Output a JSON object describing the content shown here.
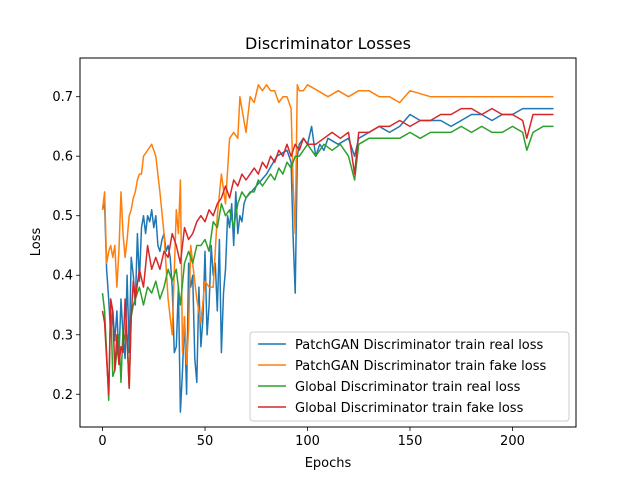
{
  "chart_data": {
    "type": "line",
    "title": "Discriminator Losses",
    "xlabel": "Epochs",
    "ylabel": "Loss",
    "xlim": [
      -11,
      231
    ],
    "ylim": [
      0.145,
      0.765
    ],
    "xticks": [
      0,
      50,
      100,
      150,
      200
    ],
    "yticks": [
      0.2,
      0.3,
      0.4,
      0.5,
      0.6,
      0.7
    ],
    "xtick_labels": [
      "0",
      "50",
      "100",
      "150",
      "200"
    ],
    "ytick_labels": [
      "0.2",
      "0.3",
      "0.4",
      "0.5",
      "0.6",
      "0.7"
    ],
    "grid": false,
    "legend_position": "lower-right",
    "series": [
      {
        "name": "PatchGAN Discriminator train real loss",
        "color": "#1f77b4",
        "x": [
          0,
          1,
          2,
          3,
          4,
          5,
          6,
          7,
          8,
          9,
          10,
          11,
          12,
          13,
          14,
          15,
          16,
          17,
          18,
          19,
          20,
          21,
          22,
          23,
          24,
          25,
          26,
          27,
          28,
          29,
          30,
          31,
          32,
          33,
          34,
          35,
          36,
          37,
          38,
          39,
          40,
          41,
          42,
          43,
          44,
          45,
          46,
          47,
          48,
          49,
          50,
          51,
          52,
          53,
          54,
          55,
          56,
          57,
          58,
          59,
          60,
          61,
          62,
          63,
          64,
          65,
          66,
          67,
          68,
          69,
          70,
          75,
          80,
          85,
          90,
          92,
          93,
          94,
          95,
          96,
          98,
          100,
          102,
          104,
          106,
          108,
          110,
          115,
          120,
          123,
          125,
          130,
          135,
          140,
          145,
          150,
          155,
          160,
          165,
          170,
          175,
          180,
          185,
          190,
          195,
          200,
          205,
          210,
          215,
          220
        ],
        "y": [
          0.51,
          0.52,
          0.41,
          0.36,
          0.3,
          0.34,
          0.29,
          0.34,
          0.26,
          0.36,
          0.3,
          0.26,
          0.4,
          0.27,
          0.43,
          0.4,
          0.35,
          0.47,
          0.39,
          0.48,
          0.5,
          0.47,
          0.5,
          0.49,
          0.51,
          0.48,
          0.5,
          0.45,
          0.44,
          0.46,
          0.47,
          0.44,
          0.45,
          0.43,
          0.38,
          0.27,
          0.28,
          0.38,
          0.17,
          0.24,
          0.33,
          0.2,
          0.42,
          0.38,
          0.4,
          0.26,
          0.22,
          0.38,
          0.28,
          0.33,
          0.44,
          0.3,
          0.35,
          0.45,
          0.4,
          0.42,
          0.34,
          0.46,
          0.27,
          0.37,
          0.41,
          0.5,
          0.48,
          0.52,
          0.45,
          0.54,
          0.47,
          0.5,
          0.49,
          0.52,
          0.53,
          0.55,
          0.57,
          0.6,
          0.61,
          0.59,
          0.46,
          0.37,
          0.6,
          0.62,
          0.63,
          0.62,
          0.65,
          0.6,
          0.62,
          0.61,
          0.63,
          0.62,
          0.63,
          0.6,
          0.63,
          0.64,
          0.65,
          0.64,
          0.65,
          0.67,
          0.66,
          0.66,
          0.66,
          0.65,
          0.66,
          0.67,
          0.67,
          0.66,
          0.67,
          0.67,
          0.68,
          0.68,
          0.68,
          0.68
        ]
      },
      {
        "name": "PatchGAN Discriminator train fake loss",
        "color": "#ff7f0e",
        "x": [
          0,
          1,
          2,
          3,
          4,
          5,
          6,
          7,
          8,
          9,
          10,
          11,
          12,
          13,
          14,
          15,
          16,
          17,
          18,
          19,
          20,
          22,
          24,
          26,
          28,
          30,
          32,
          34,
          36,
          37,
          38,
          39,
          40,
          41,
          42,
          43,
          44,
          46,
          48,
          50,
          52,
          54,
          56,
          58,
          60,
          62,
          64,
          66,
          67,
          68,
          70,
          72,
          74,
          76,
          78,
          80,
          82,
          84,
          86,
          88,
          90,
          92,
          93,
          94,
          95,
          96,
          98,
          100,
          105,
          110,
          115,
          120,
          125,
          130,
          135,
          140,
          145,
          150,
          160,
          170,
          180,
          190,
          200,
          210,
          220
        ],
        "y": [
          0.51,
          0.54,
          0.42,
          0.44,
          0.45,
          0.43,
          0.45,
          0.38,
          0.44,
          0.54,
          0.47,
          0.43,
          0.46,
          0.5,
          0.51,
          0.53,
          0.54,
          0.56,
          0.57,
          0.57,
          0.6,
          0.61,
          0.62,
          0.6,
          0.54,
          0.47,
          0.36,
          0.3,
          0.51,
          0.47,
          0.56,
          0.27,
          0.33,
          0.25,
          0.31,
          0.45,
          0.42,
          0.36,
          0.32,
          0.39,
          0.38,
          0.38,
          0.5,
          0.57,
          0.52,
          0.63,
          0.64,
          0.63,
          0.7,
          0.68,
          0.64,
          0.7,
          0.69,
          0.72,
          0.71,
          0.72,
          0.71,
          0.71,
          0.69,
          0.7,
          0.7,
          0.68,
          0.55,
          0.47,
          0.72,
          0.71,
          0.71,
          0.72,
          0.71,
          0.7,
          0.71,
          0.7,
          0.71,
          0.71,
          0.7,
          0.7,
          0.69,
          0.71,
          0.7,
          0.7,
          0.7,
          0.7,
          0.7,
          0.7,
          0.7
        ]
      },
      {
        "name": "Global Discriminator train real loss",
        "color": "#2ca02c",
        "x": [
          0,
          1,
          2,
          3,
          4,
          5,
          6,
          7,
          8,
          9,
          10,
          11,
          12,
          13,
          14,
          15,
          16,
          18,
          20,
          22,
          24,
          26,
          28,
          30,
          32,
          34,
          36,
          38,
          40,
          42,
          44,
          46,
          48,
          50,
          52,
          54,
          56,
          58,
          60,
          62,
          64,
          66,
          68,
          70,
          72,
          74,
          76,
          78,
          80,
          82,
          84,
          86,
          88,
          90,
          92,
          94,
          96,
          98,
          100,
          104,
          108,
          112,
          116,
          120,
          123,
          125,
          130,
          135,
          140,
          145,
          150,
          155,
          160,
          165,
          170,
          175,
          180,
          185,
          190,
          195,
          200,
          205,
          207,
          210,
          215,
          220
        ],
        "y": [
          0.37,
          0.34,
          0.27,
          0.19,
          0.35,
          0.23,
          0.24,
          0.27,
          0.3,
          0.22,
          0.31,
          0.29,
          0.3,
          0.21,
          0.33,
          0.35,
          0.36,
          0.38,
          0.35,
          0.38,
          0.37,
          0.39,
          0.36,
          0.38,
          0.41,
          0.39,
          0.41,
          0.35,
          0.42,
          0.44,
          0.42,
          0.45,
          0.45,
          0.46,
          0.44,
          0.49,
          0.48,
          0.52,
          0.5,
          0.51,
          0.48,
          0.52,
          0.54,
          0.53,
          0.54,
          0.54,
          0.56,
          0.55,
          0.56,
          0.57,
          0.56,
          0.58,
          0.57,
          0.59,
          0.58,
          0.6,
          0.6,
          0.61,
          0.62,
          0.6,
          0.62,
          0.61,
          0.62,
          0.6,
          0.56,
          0.62,
          0.63,
          0.63,
          0.63,
          0.63,
          0.64,
          0.63,
          0.64,
          0.64,
          0.64,
          0.65,
          0.64,
          0.65,
          0.64,
          0.64,
          0.65,
          0.64,
          0.61,
          0.64,
          0.65,
          0.65
        ]
      },
      {
        "name": "Global Discriminator train fake loss",
        "color": "#d62728",
        "x": [
          0,
          1,
          2,
          3,
          4,
          5,
          6,
          7,
          8,
          9,
          10,
          11,
          12,
          13,
          14,
          15,
          16,
          18,
          20,
          22,
          24,
          26,
          28,
          30,
          32,
          34,
          36,
          38,
          40,
          42,
          44,
          46,
          48,
          50,
          52,
          54,
          56,
          58,
          60,
          62,
          64,
          66,
          68,
          70,
          72,
          74,
          76,
          78,
          80,
          82,
          84,
          86,
          88,
          90,
          92,
          94,
          96,
          98,
          100,
          104,
          108,
          112,
          116,
          120,
          123,
          125,
          130,
          135,
          140,
          145,
          150,
          155,
          160,
          165,
          170,
          175,
          180,
          185,
          190,
          195,
          200,
          205,
          207,
          210,
          215,
          220
        ],
        "y": [
          0.34,
          0.32,
          0.26,
          0.2,
          0.36,
          0.34,
          0.24,
          0.3,
          0.25,
          0.28,
          0.27,
          0.36,
          0.29,
          0.21,
          0.33,
          0.39,
          0.36,
          0.41,
          0.38,
          0.45,
          0.41,
          0.43,
          0.41,
          0.44,
          0.43,
          0.47,
          0.45,
          0.42,
          0.48,
          0.46,
          0.47,
          0.49,
          0.5,
          0.49,
          0.51,
          0.5,
          0.52,
          0.53,
          0.55,
          0.53,
          0.56,
          0.55,
          0.57,
          0.56,
          0.57,
          0.58,
          0.57,
          0.59,
          0.58,
          0.6,
          0.59,
          0.61,
          0.6,
          0.62,
          0.6,
          0.62,
          0.61,
          0.63,
          0.62,
          0.62,
          0.63,
          0.64,
          0.63,
          0.64,
          0.57,
          0.64,
          0.64,
          0.65,
          0.65,
          0.66,
          0.65,
          0.66,
          0.66,
          0.67,
          0.67,
          0.68,
          0.68,
          0.67,
          0.68,
          0.67,
          0.67,
          0.66,
          0.63,
          0.67,
          0.67,
          0.67
        ]
      }
    ]
  }
}
